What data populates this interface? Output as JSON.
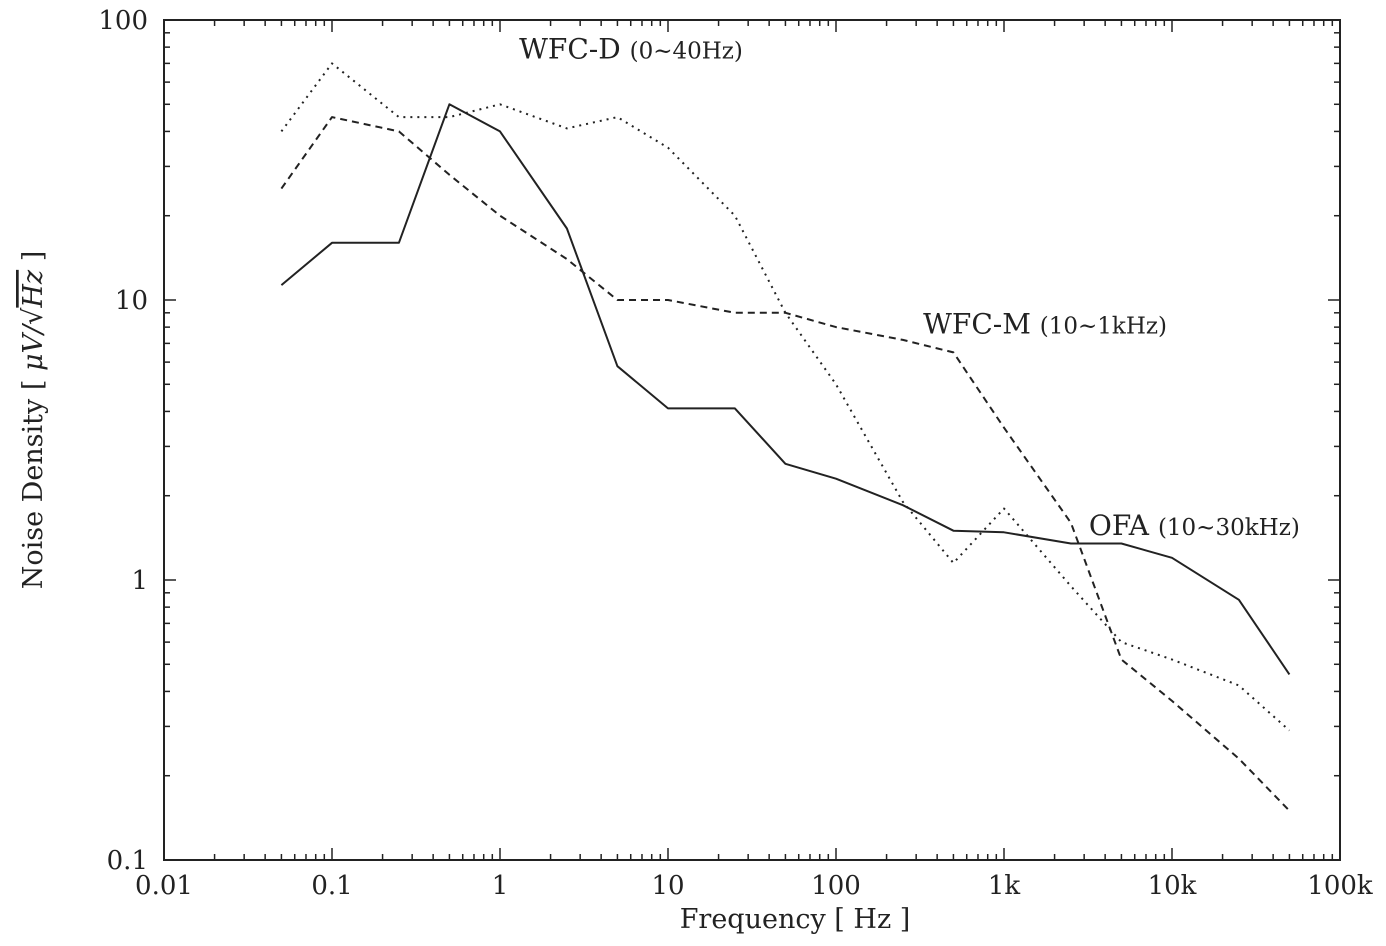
{
  "chart_data": {
    "type": "line",
    "x_scale": "log",
    "y_scale": "log",
    "xlim": [
      0.01,
      100000
    ],
    "ylim": [
      0.1,
      100
    ],
    "xlabel": "Frequency [ Hz ]",
    "ylabel": "Noise Density [ μV/√Hz ]",
    "ylabel_parts": {
      "prefix": "Noise Density [ ",
      "mu_v": "μV/",
      "radical": "√",
      "hz": "Hz",
      "suffix": " ]"
    },
    "x_ticks": [
      {
        "value": 0.01,
        "label": "0.01"
      },
      {
        "value": 0.1,
        "label": "0.1"
      },
      {
        "value": 1,
        "label": "1"
      },
      {
        "value": 10,
        "label": "10"
      },
      {
        "value": 100,
        "label": "100"
      },
      {
        "value": 1000,
        "label": "1k"
      },
      {
        "value": 10000,
        "label": "10k"
      },
      {
        "value": 100000,
        "label": "100k"
      }
    ],
    "y_ticks": [
      {
        "value": 0.1,
        "label": "0.1"
      },
      {
        "value": 1,
        "label": "1"
      },
      {
        "value": 10,
        "label": "10"
      },
      {
        "value": 100,
        "label": "100"
      }
    ],
    "grid": false,
    "series": [
      {
        "style": "solid",
        "x": [
          0.05,
          0.1,
          0.25,
          0.5,
          1,
          2.5,
          5,
          10,
          25,
          50,
          100,
          250,
          500,
          1000,
          2500,
          5000,
          10000,
          25000,
          50000
        ],
        "y": [
          11.3,
          16,
          16,
          50,
          40,
          18,
          5.8,
          4.1,
          4.1,
          2.6,
          2.3,
          1.85,
          1.5,
          1.48,
          1.35,
          1.35,
          1.2,
          0.85,
          0.46
        ]
      },
      {
        "style": "dashed",
        "x": [
          0.05,
          0.1,
          0.25,
          0.5,
          1,
          2.5,
          5,
          10,
          25,
          50,
          100,
          250,
          500,
          1000,
          2500,
          5000,
          10000,
          25000,
          50000
        ],
        "y": [
          25,
          45,
          40,
          28,
          20,
          14,
          10,
          10,
          9,
          9,
          8,
          7.2,
          6.5,
          3.5,
          1.6,
          0.52,
          0.37,
          0.23,
          0.15
        ]
      },
      {
        "style": "dotted",
        "x": [
          0.05,
          0.1,
          0.25,
          0.5,
          1,
          2.5,
          5,
          10,
          25,
          50,
          100,
          250,
          500,
          1000,
          2500,
          5000,
          10000,
          25000,
          50000
        ],
        "y": [
          40,
          70,
          45,
          45,
          50,
          41,
          45,
          35,
          20,
          9,
          5,
          1.9,
          1.15,
          1.8,
          0.95,
          0.6,
          0.52,
          0.42,
          0.29
        ]
      }
    ],
    "annotations": [
      {
        "main": "WFC-D",
        "range": "(0~40Hz)",
        "x": 1.3,
        "y": 73
      },
      {
        "main": "WFC-M",
        "range": "(10~1kHz)",
        "x": 330,
        "y": 7.6
      },
      {
        "main": "OFA",
        "range": "(10~30kHz)",
        "x": 3200,
        "y": 1.45
      }
    ]
  }
}
